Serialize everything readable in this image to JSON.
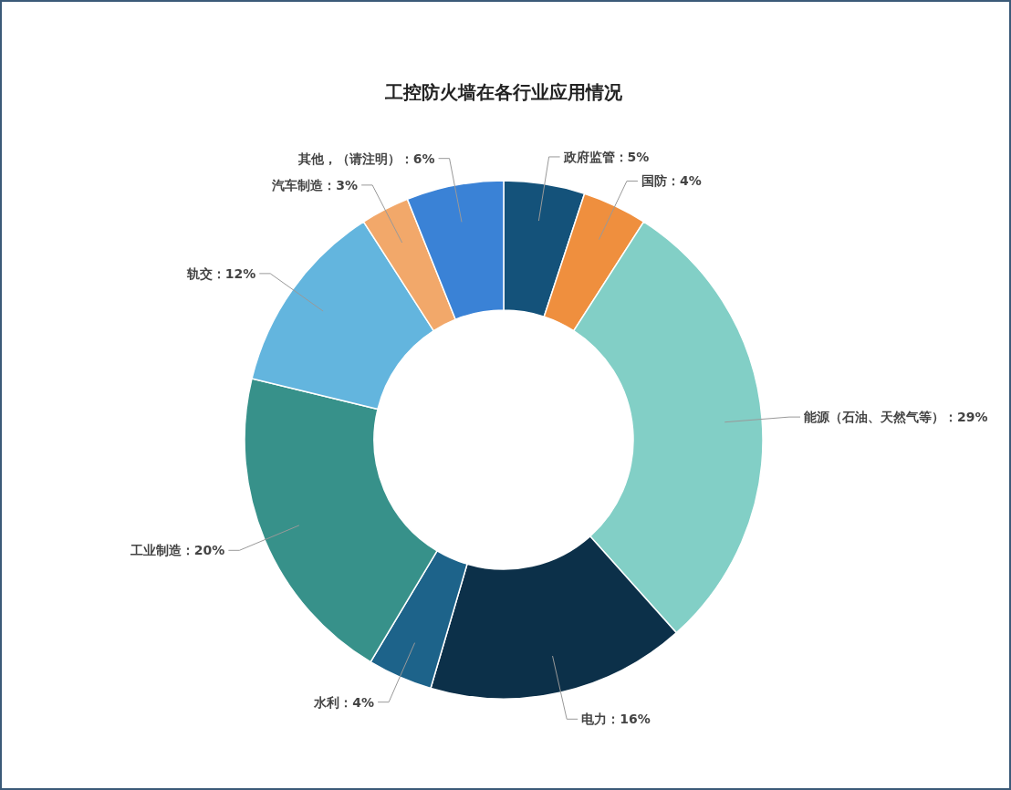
{
  "chart_data": {
    "type": "donut",
    "title": "工控防火墙在各行业应用情况",
    "categories": [
      "政府监管",
      "国防",
      "能源（石油、天然气等）",
      "电力",
      "水利",
      "工业制造",
      "轨交",
      "汽车制造",
      "其他，（请注明）"
    ],
    "values": [
      5,
      4,
      29,
      16,
      4,
      20,
      12,
      3,
      6
    ],
    "value_labels": [
      "5%",
      "4%",
      "29%",
      "16%",
      "4%",
      "20%",
      "12%",
      "3%",
      "6%"
    ],
    "colors": [
      "#14527a",
      "#ef8f3e",
      "#82cfc6",
      "#0c3049",
      "#1d638a",
      "#37918a",
      "#63b5de",
      "#f2a86a",
      "#3a82d6"
    ]
  }
}
